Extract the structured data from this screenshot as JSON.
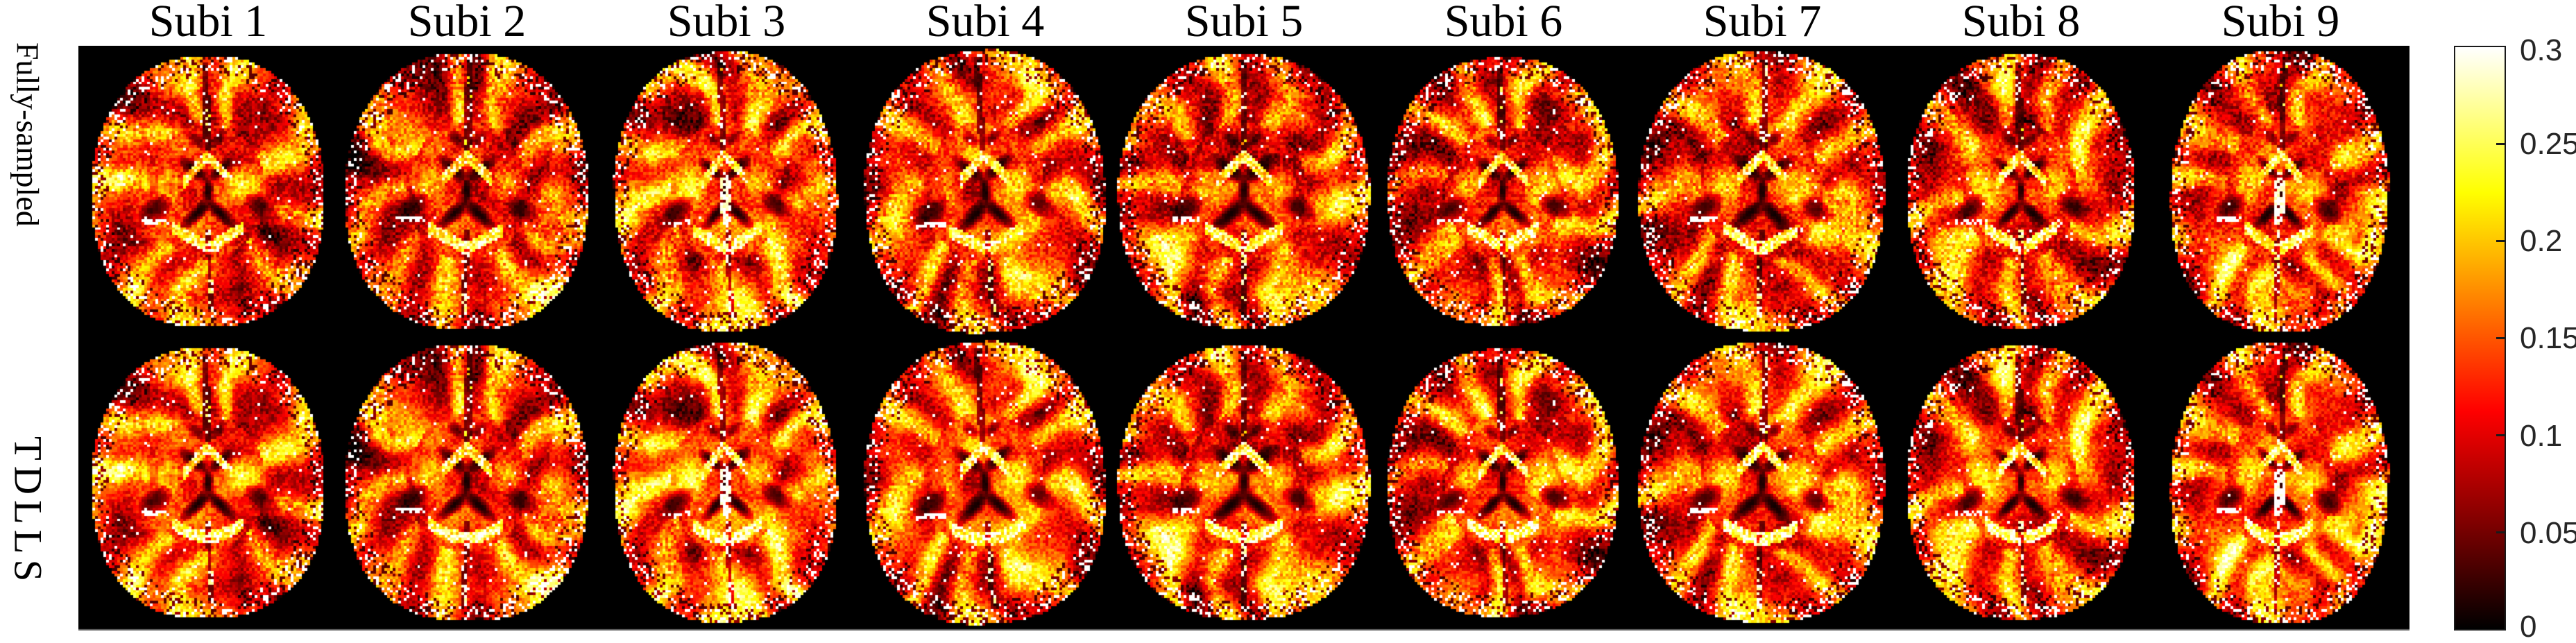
{
  "figure": {
    "column_headers": [
      "Subi 1",
      "Subi 2",
      "Subi 3",
      "Subi 4",
      "Subi 5",
      "Subi 6",
      "Subi 7",
      "Subi 8",
      "Subi 9"
    ],
    "row_labels": [
      "Fully-sampled",
      "TDLLS"
    ]
  },
  "colorbar": {
    "colormap": "hot",
    "min": 0,
    "max": 0.3,
    "tick_labels": [
      "0.3",
      "0.25",
      "0.2",
      "0.15",
      "0.1",
      "0.05",
      "0"
    ]
  },
  "chart_data": {
    "type": "heatmap",
    "title": "",
    "rows": [
      "Fully-sampled",
      "TDLLS"
    ],
    "columns": [
      "Subi 1",
      "Subi 2",
      "Subi 3",
      "Subi 4",
      "Subi 5",
      "Subi 6",
      "Subi 7",
      "Subi 8",
      "Subi 9"
    ],
    "colormap": "hot",
    "value_range": [
      0,
      0.3
    ],
    "colorbar_ticks": [
      0.3,
      0.25,
      0.2,
      0.15,
      0.1,
      0.05,
      0
    ],
    "content": "Grid of 18 axial brain parameter-map images (2 reconstruction methods x 9 subjects) rendered with the hot colormap on a black background"
  }
}
